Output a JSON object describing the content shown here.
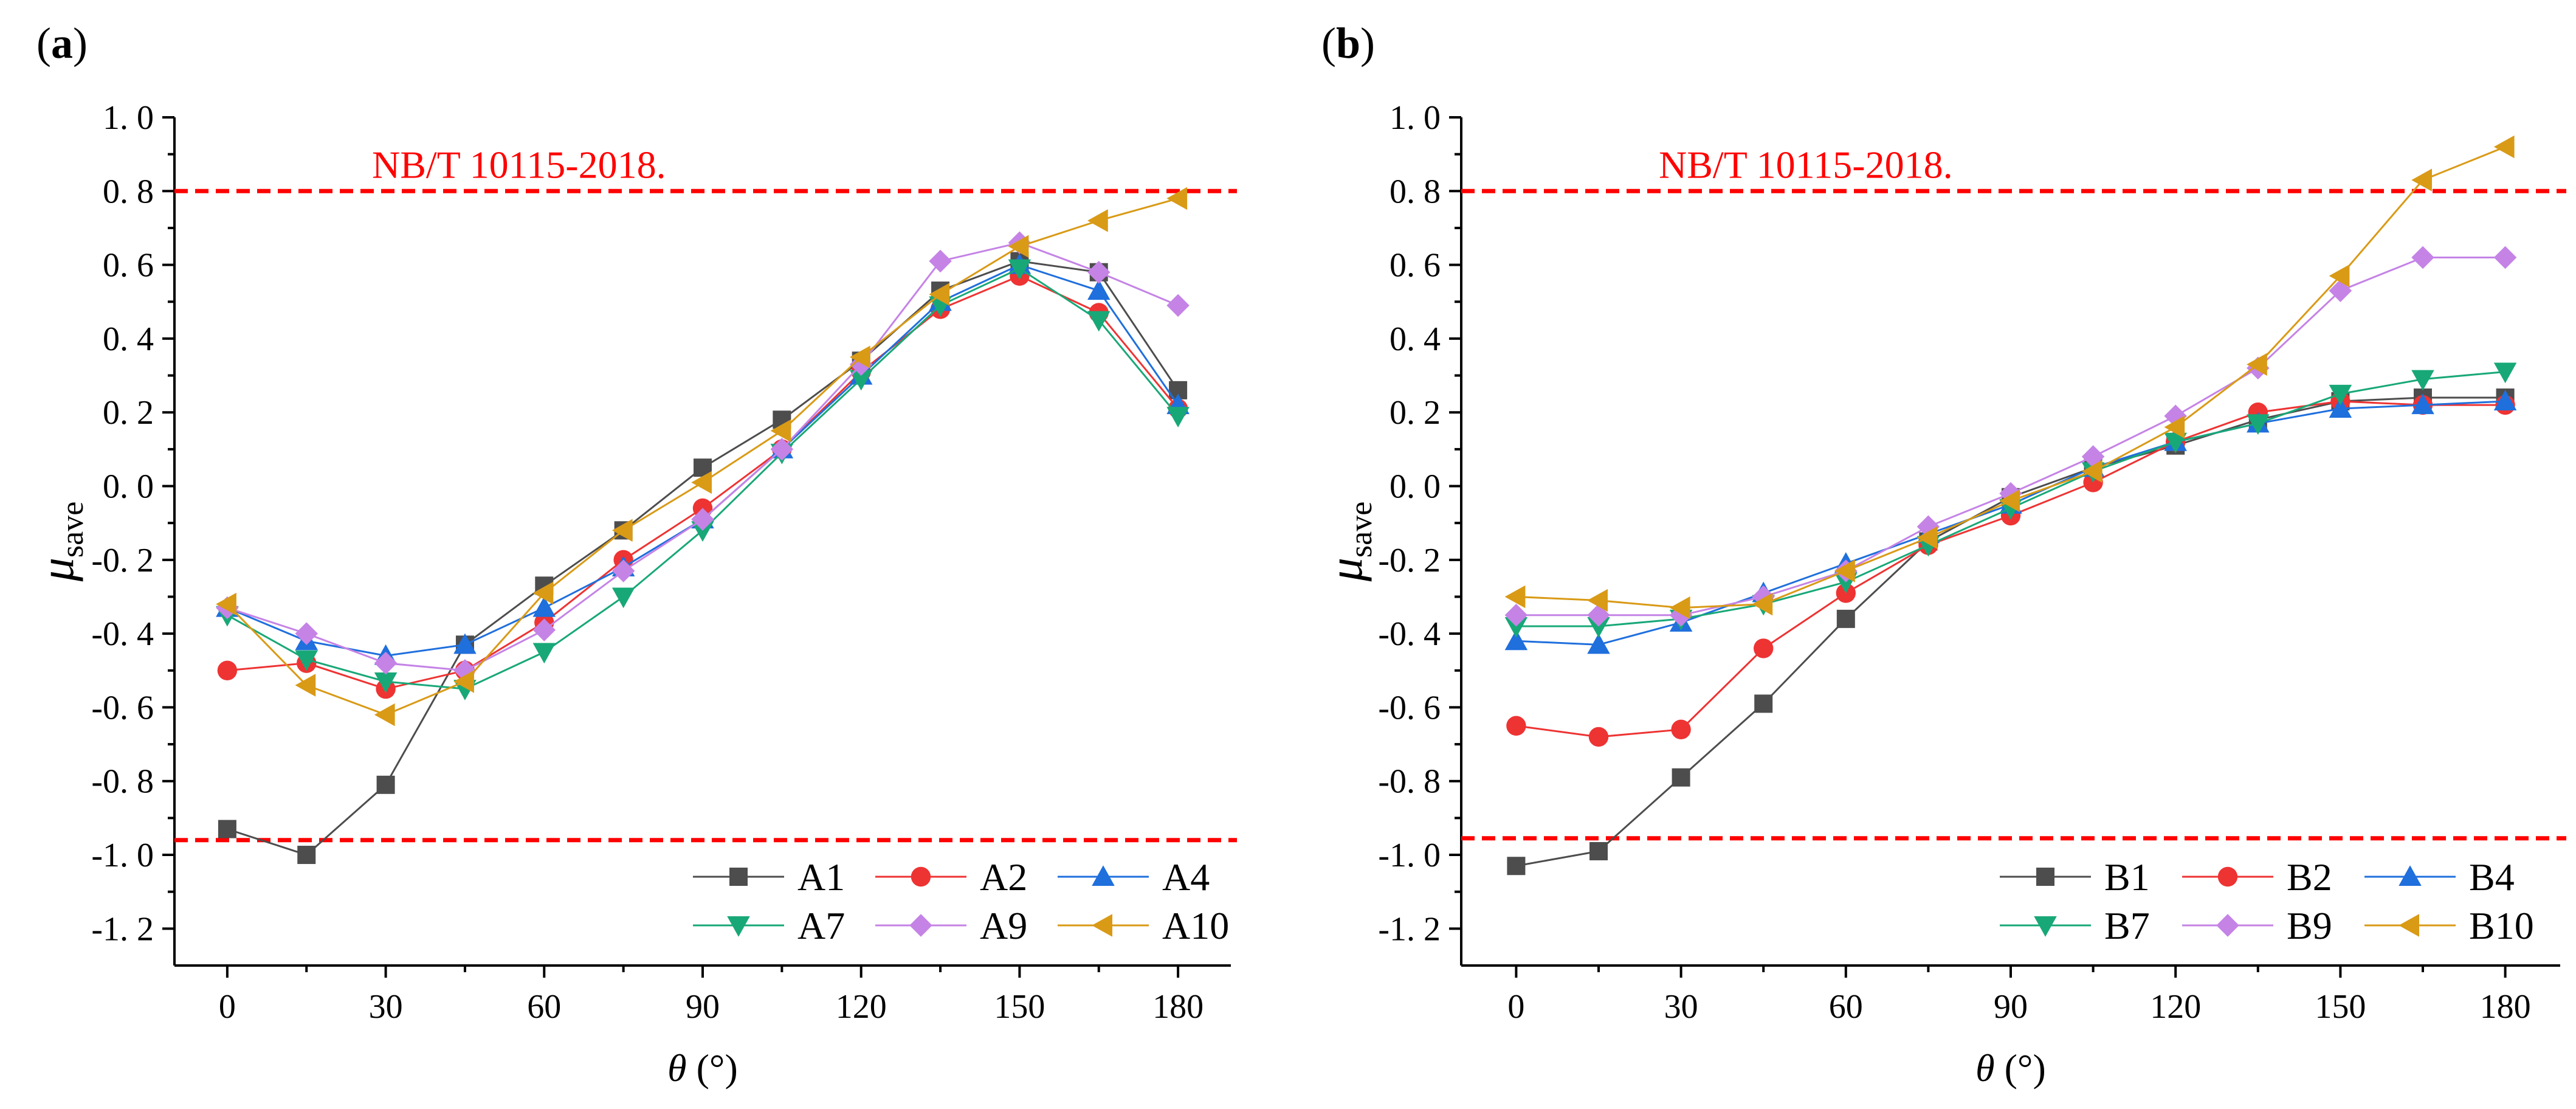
{
  "chart_data": [
    {
      "type": "line",
      "panel_label": "(a)",
      "xlabel_symbol": "θ",
      "xlabel_unit": "(°)",
      "ylabel_symbol": "μ",
      "ylabel_sub": "save",
      "xlim": [
        -10,
        190
      ],
      "ylim": [
        -1.3,
        1.0
      ],
      "x_ticks": [
        0,
        30,
        60,
        90,
        120,
        150,
        180
      ],
      "x_tick_labels": [
        "0",
        "30",
        "60",
        "90",
        "120",
        "150",
        "180"
      ],
      "y_ticks": [
        1.0,
        0.8,
        0.6,
        0.4,
        0.2,
        0.0,
        -0.2,
        -0.4,
        -0.6,
        -0.8,
        -1.0,
        -1.2
      ],
      "y_tick_labels": [
        "1. 0",
        "0. 8",
        "0. 6",
        "0. 4",
        "0. 2",
        "0. 0",
        "-0. 2",
        "-0. 4",
        "-0. 6",
        "-0. 8",
        "-1. 0",
        "-1. 2"
      ],
      "reference_lines": [
        {
          "y": 0.8,
          "label": "NB/T 10115-2018."
        },
        {
          "y": -0.96,
          "label": ""
        }
      ],
      "x": [
        0,
        15,
        30,
        45,
        60,
        75,
        90,
        105,
        120,
        135,
        150,
        165,
        180
      ],
      "series": [
        {
          "name": "A1",
          "color": "#4d4d4d",
          "marker": "square",
          "values": [
            -0.93,
            -1.0,
            -0.81,
            -0.43,
            -0.27,
            -0.12,
            0.05,
            0.18,
            0.34,
            0.53,
            0.61,
            0.58,
            0.26
          ]
        },
        {
          "name": "A2",
          "color": "#ee3333",
          "marker": "circle",
          "values": [
            -0.5,
            -0.48,
            -0.55,
            -0.5,
            -0.37,
            -0.2,
            -0.06,
            0.1,
            0.31,
            0.48,
            0.57,
            0.47,
            0.21
          ]
        },
        {
          "name": "A4",
          "color": "#1f6fdd",
          "marker": "triangle-up",
          "values": [
            -0.33,
            -0.42,
            -0.46,
            -0.43,
            -0.33,
            -0.22,
            -0.09,
            0.1,
            0.3,
            0.5,
            0.6,
            0.53,
            0.22
          ]
        },
        {
          "name": "A7",
          "color": "#18a878",
          "marker": "triangle-down",
          "values": [
            -0.35,
            -0.47,
            -0.53,
            -0.55,
            -0.45,
            -0.3,
            -0.12,
            0.09,
            0.29,
            0.49,
            0.59,
            0.45,
            0.19
          ]
        },
        {
          "name": "A9",
          "color": "#c583e6",
          "marker": "diamond",
          "values": [
            -0.33,
            -0.4,
            -0.48,
            -0.5,
            -0.39,
            -0.23,
            -0.09,
            0.1,
            0.33,
            0.61,
            0.66,
            0.58,
            0.49
          ]
        },
        {
          "name": "A10",
          "color": "#d99a16",
          "marker": "triangle-left",
          "values": [
            -0.32,
            -0.54,
            -0.62,
            -0.53,
            -0.29,
            -0.12,
            0.01,
            0.15,
            0.35,
            0.52,
            0.65,
            0.72,
            0.78
          ]
        }
      ]
    },
    {
      "type": "line",
      "panel_label": "(b)",
      "xlabel_symbol": "θ",
      "xlabel_unit": "(°)",
      "ylabel_symbol": "μ",
      "ylabel_sub": "save",
      "xlim": [
        -10,
        190
      ],
      "ylim": [
        -1.3,
        1.0
      ],
      "x_ticks": [
        0,
        30,
        60,
        90,
        120,
        150,
        180
      ],
      "x_tick_labels": [
        "0",
        "30",
        "60",
        "90",
        "120",
        "150",
        "180"
      ],
      "y_ticks": [
        1.0,
        0.8,
        0.6,
        0.4,
        0.2,
        0.0,
        -0.2,
        -0.4,
        -0.6,
        -0.8,
        -1.0,
        -1.2
      ],
      "y_tick_labels": [
        "1. 0",
        "0. 8",
        "0. 6",
        "0. 4",
        "0. 2",
        "0. 0",
        "-0. 2",
        "-0. 4",
        "-0. 6",
        "-0. 8",
        "-1. 0",
        "-1. 2"
      ],
      "reference_lines": [
        {
          "y": 0.8,
          "label": "NB/T 10115-2018."
        },
        {
          "y": -0.955,
          "label": ""
        }
      ],
      "x": [
        0,
        15,
        30,
        45,
        60,
        75,
        90,
        105,
        120,
        135,
        150,
        165,
        180
      ],
      "series": [
        {
          "name": "B1",
          "color": "#4d4d4d",
          "marker": "square",
          "values": [
            -1.03,
            -0.99,
            -0.79,
            -0.59,
            -0.36,
            -0.15,
            -0.03,
            0.05,
            0.11,
            0.18,
            0.23,
            0.24,
            0.24
          ]
        },
        {
          "name": "B2",
          "color": "#ee3333",
          "marker": "circle",
          "values": [
            -0.65,
            -0.68,
            -0.66,
            -0.44,
            -0.29,
            -0.16,
            -0.08,
            0.01,
            0.12,
            0.2,
            0.23,
            0.22,
            0.22
          ]
        },
        {
          "name": "B4",
          "color": "#1f6fdd",
          "marker": "triangle-up",
          "values": [
            -0.42,
            -0.43,
            -0.37,
            -0.29,
            -0.21,
            -0.13,
            -0.05,
            0.05,
            0.12,
            0.17,
            0.21,
            0.22,
            0.23
          ]
        },
        {
          "name": "B7",
          "color": "#18a878",
          "marker": "triangle-down",
          "values": [
            -0.38,
            -0.38,
            -0.36,
            -0.32,
            -0.26,
            -0.16,
            -0.06,
            0.04,
            0.12,
            0.17,
            0.25,
            0.29,
            0.31
          ]
        },
        {
          "name": "B9",
          "color": "#c583e6",
          "marker": "diamond",
          "values": [
            -0.35,
            -0.35,
            -0.35,
            -0.3,
            -0.23,
            -0.11,
            -0.02,
            0.08,
            0.19,
            0.32,
            0.53,
            0.62,
            0.62
          ]
        },
        {
          "name": "B10",
          "color": "#d99a16",
          "marker": "triangle-left",
          "values": [
            -0.3,
            -0.31,
            -0.33,
            -0.32,
            -0.23,
            -0.14,
            -0.04,
            0.04,
            0.16,
            0.33,
            0.57,
            0.83,
            0.92
          ]
        }
      ]
    }
  ]
}
